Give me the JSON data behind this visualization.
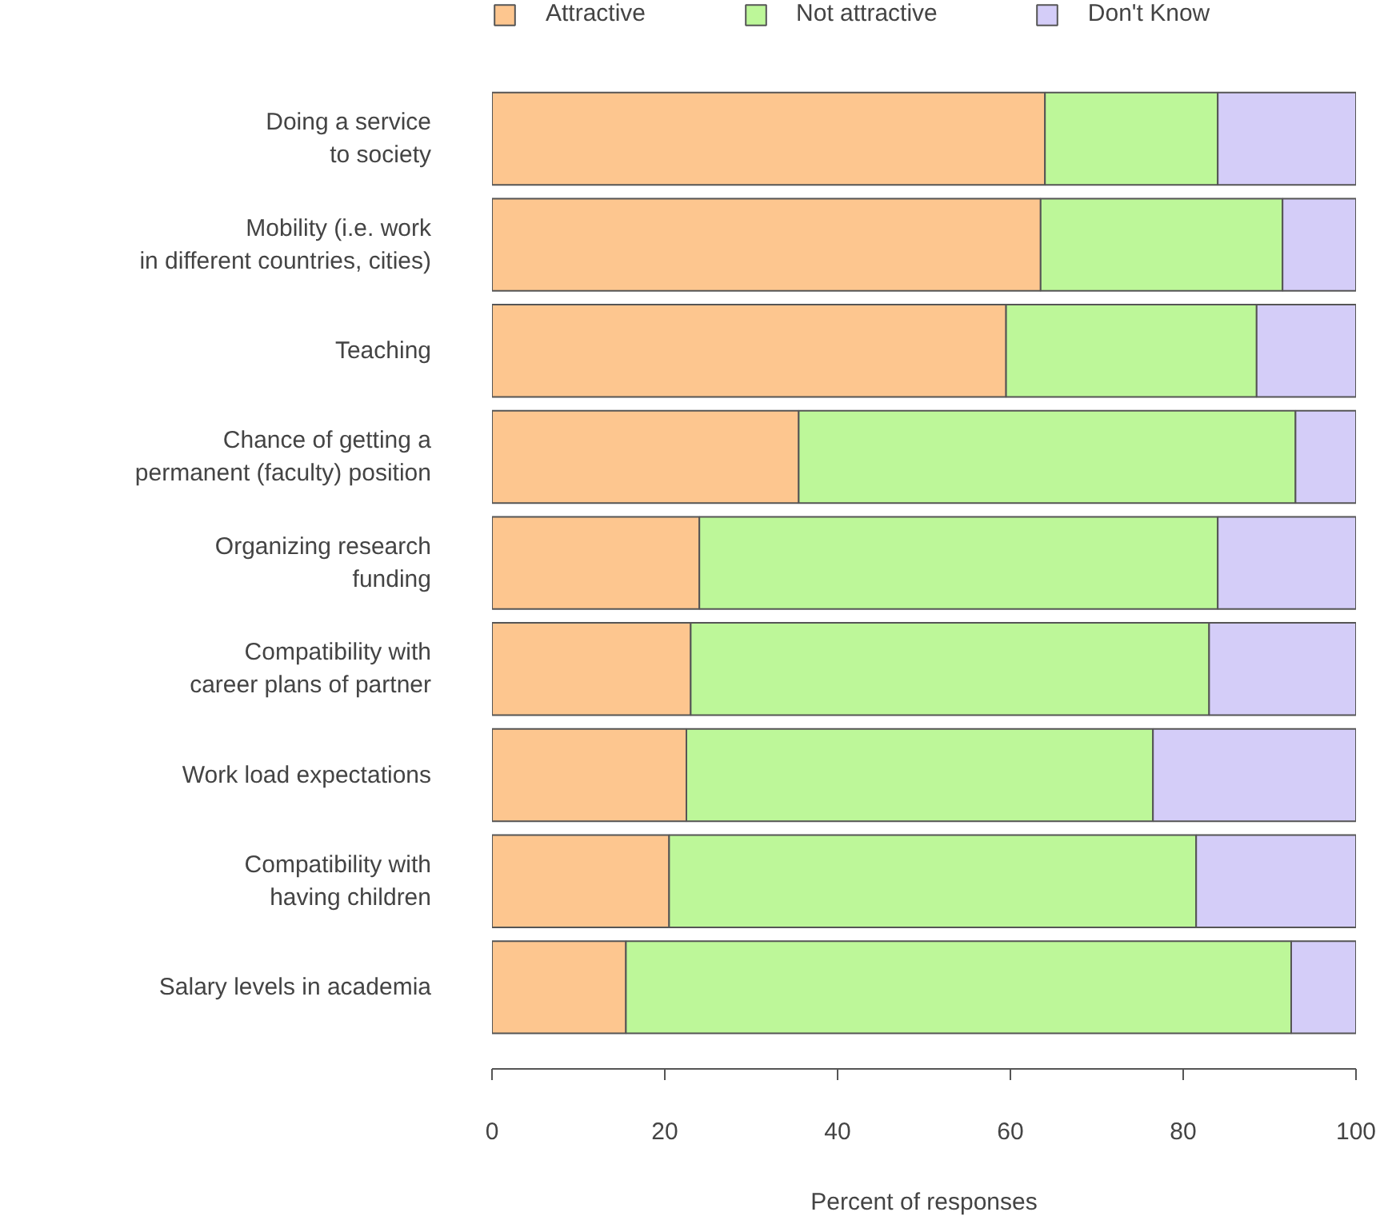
{
  "chart_data": {
    "type": "bar",
    "orientation": "horizontal",
    "stacked": true,
    "categories": [
      "Doing a service\nto society",
      "Mobility (i.e. work\nin different countries, cities)",
      "Teaching",
      "Chance of getting a\npermanent (faculty) position",
      "Organizing research\nfunding",
      "Compatibility with\ncareer plans of partner",
      "Work load expectations",
      "Compatibility with\nhaving children",
      "Salary levels in academia"
    ],
    "series": [
      {
        "name": "Attractive",
        "color": "#fdc68f",
        "values": [
          64,
          63.5,
          59.5,
          35.5,
          24,
          23,
          22.5,
          20.5,
          15.5
        ]
      },
      {
        "name": "Not attractive",
        "color": "#bdf799",
        "values": [
          20,
          28,
          29,
          57.5,
          60,
          60,
          54,
          61,
          77
        ]
      },
      {
        "name": "Don't Know",
        "color": "#d4cdf8",
        "values": [
          16,
          8.5,
          11.5,
          7,
          16,
          17,
          23.5,
          18.5,
          7.5
        ]
      }
    ],
    "xlabel": "Percent of responses",
    "xlim": [
      0,
      100
    ],
    "xticks": [
      0,
      20,
      40,
      60,
      80,
      100
    ],
    "legend": "top"
  }
}
